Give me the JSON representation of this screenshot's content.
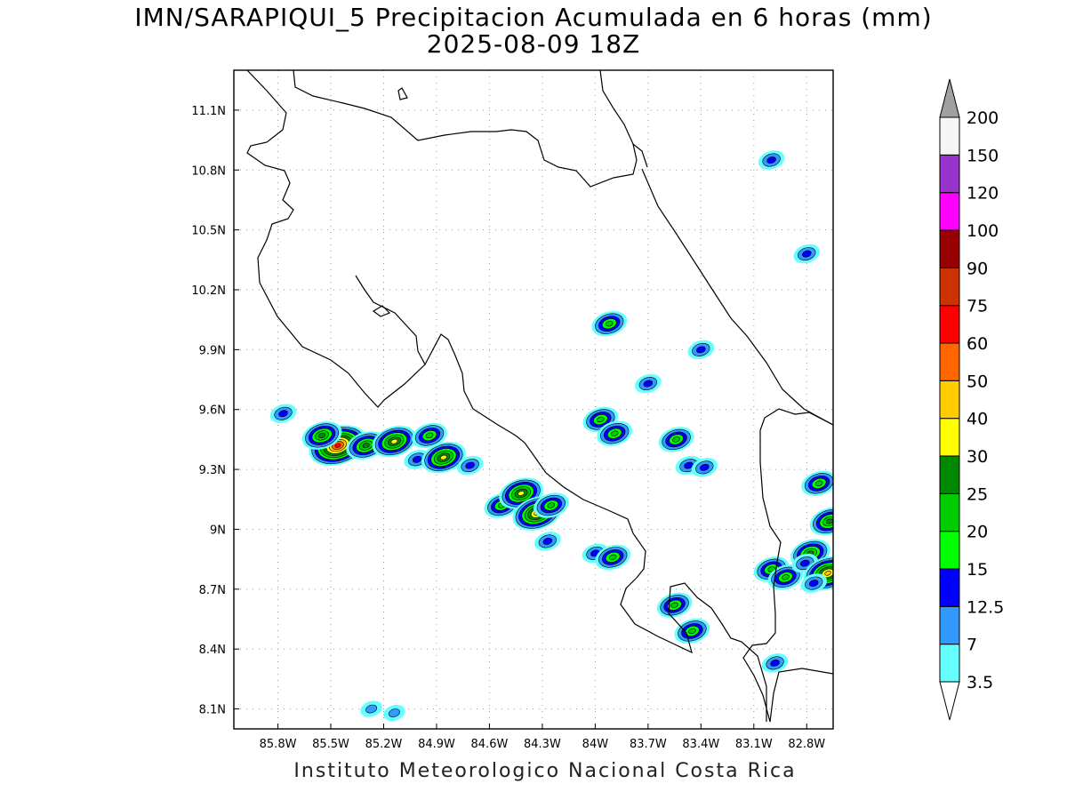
{
  "header": {
    "title": "IMN/SARAPIQUI_5 Precipitacion Acumulada en 6 horas (mm)",
    "subtitle": "2025-08-09 18Z"
  },
  "footer": {
    "credit": "Instituto Meteorologico Nacional Costa Rica"
  },
  "map": {
    "lon_range": [
      -86.05,
      -82.65
    ],
    "lat_range": [
      8.0,
      11.3
    ],
    "lon_ticks": [
      {
        "value": -85.8,
        "label": "85.8W"
      },
      {
        "value": -85.5,
        "label": "85.5W"
      },
      {
        "value": -85.2,
        "label": "85.2W"
      },
      {
        "value": -84.9,
        "label": "84.9W"
      },
      {
        "value": -84.6,
        "label": "84.6W"
      },
      {
        "value": -84.3,
        "label": "84.3W"
      },
      {
        "value": -84.0,
        "label": "84W"
      },
      {
        "value": -83.7,
        "label": "83.7W"
      },
      {
        "value": -83.4,
        "label": "83.4W"
      },
      {
        "value": -83.1,
        "label": "83.1W"
      },
      {
        "value": -82.8,
        "label": "82.8W"
      }
    ],
    "lat_ticks": [
      {
        "value": 11.1,
        "label": "11.1N"
      },
      {
        "value": 10.8,
        "label": "10.8N"
      },
      {
        "value": 10.5,
        "label": "10.5N"
      },
      {
        "value": 10.2,
        "label": "10.2N"
      },
      {
        "value": 9.9,
        "label": "9.9N"
      },
      {
        "value": 9.6,
        "label": "9.6N"
      },
      {
        "value": 9.3,
        "label": "9.3N"
      },
      {
        "value": 9.0,
        "label": "9N"
      },
      {
        "value": 8.7,
        "label": "8.7N"
      },
      {
        "value": 8.4,
        "label": "8.4N"
      },
      {
        "value": 8.1,
        "label": "8.1N"
      }
    ],
    "grid": true
  },
  "colorbar": {
    "levels": [
      {
        "label": "3.5",
        "color": "#66ffff"
      },
      {
        "label": "7",
        "color": "#3399ff"
      },
      {
        "label": "12.5",
        "color": "#0000ff"
      },
      {
        "label": "15",
        "color": "#00ff00"
      },
      {
        "label": "20",
        "color": "#00cc00"
      },
      {
        "label": "25",
        "color": "#008800"
      },
      {
        "label": "30",
        "color": "#ffff00"
      },
      {
        "label": "40",
        "color": "#ffcc00"
      },
      {
        "label": "50",
        "color": "#ff6600"
      },
      {
        "label": "60",
        "color": "#ff0000"
      },
      {
        "label": "75",
        "color": "#cc3300"
      },
      {
        "label": "90",
        "color": "#990000"
      },
      {
        "label": "100",
        "color": "#ff00ff"
      },
      {
        "label": "120",
        "color": "#9933cc"
      },
      {
        "label": "150",
        "color": "#f5f5f5"
      },
      {
        "label": "200",
        "color": ""
      }
    ],
    "top_arrow_color": "#a0a0a0",
    "bottom_arrow_color": "#ffffff"
  },
  "precip_cells": [
    {
      "lon": -85.77,
      "lat": 9.58,
      "max": 12.5
    },
    {
      "lon": -85.46,
      "lat": 9.42,
      "max": 60
    },
    {
      "lon": -85.55,
      "lat": 9.47,
      "max": 25
    },
    {
      "lon": -85.3,
      "lat": 9.42,
      "max": 25
    },
    {
      "lon": -85.14,
      "lat": 9.44,
      "max": 30
    },
    {
      "lon": -85.01,
      "lat": 9.35,
      "max": 12.5
    },
    {
      "lon": -84.94,
      "lat": 9.47,
      "max": 20
    },
    {
      "lon": -84.86,
      "lat": 9.36,
      "max": 30
    },
    {
      "lon": -84.71,
      "lat": 9.32,
      "max": 12.5
    },
    {
      "lon": -84.53,
      "lat": 9.12,
      "max": 20
    },
    {
      "lon": -84.42,
      "lat": 9.18,
      "max": 30
    },
    {
      "lon": -84.33,
      "lat": 9.08,
      "max": 40
    },
    {
      "lon": -84.25,
      "lat": 9.12,
      "max": 20
    },
    {
      "lon": -84.27,
      "lat": 8.94,
      "max": 12.5
    },
    {
      "lon": -84.0,
      "lat": 8.88,
      "max": 12.5
    },
    {
      "lon": -83.9,
      "lat": 8.86,
      "max": 20
    },
    {
      "lon": -83.97,
      "lat": 9.55,
      "max": 20
    },
    {
      "lon": -83.89,
      "lat": 9.48,
      "max": 20
    },
    {
      "lon": -83.54,
      "lat": 9.45,
      "max": 20
    },
    {
      "lon": -83.47,
      "lat": 9.32,
      "max": 12.5
    },
    {
      "lon": -83.38,
      "lat": 9.31,
      "max": 12.5
    },
    {
      "lon": -83.55,
      "lat": 8.62,
      "max": 20
    },
    {
      "lon": -83.45,
      "lat": 8.49,
      "max": 20
    },
    {
      "lon": -83.0,
      "lat": 8.8,
      "max": 20
    },
    {
      "lon": -82.92,
      "lat": 8.76,
      "max": 20
    },
    {
      "lon": -82.78,
      "lat": 8.88,
      "max": 25
    },
    {
      "lon": -82.81,
      "lat": 8.83,
      "max": 12.5
    },
    {
      "lon": -82.73,
      "lat": 9.23,
      "max": 20
    },
    {
      "lon": -82.67,
      "lat": 9.04,
      "max": 25
    },
    {
      "lon": -82.68,
      "lat": 8.78,
      "max": 40
    },
    {
      "lon": -82.76,
      "lat": 8.73,
      "max": 12.5
    },
    {
      "lon": -82.98,
      "lat": 8.33,
      "max": 12.5
    },
    {
      "lon": -83.92,
      "lat": 10.03,
      "max": 20
    },
    {
      "lon": -83.0,
      "lat": 10.85,
      "max": 12.5
    },
    {
      "lon": -82.8,
      "lat": 10.38,
      "max": 12.5
    },
    {
      "lon": -83.7,
      "lat": 9.73,
      "max": 12.5
    },
    {
      "lon": -83.4,
      "lat": 9.9,
      "max": 12.5
    },
    {
      "lon": -85.14,
      "lat": 8.08,
      "max": 7
    },
    {
      "lon": -85.27,
      "lat": 8.1,
      "max": 7
    }
  ]
}
